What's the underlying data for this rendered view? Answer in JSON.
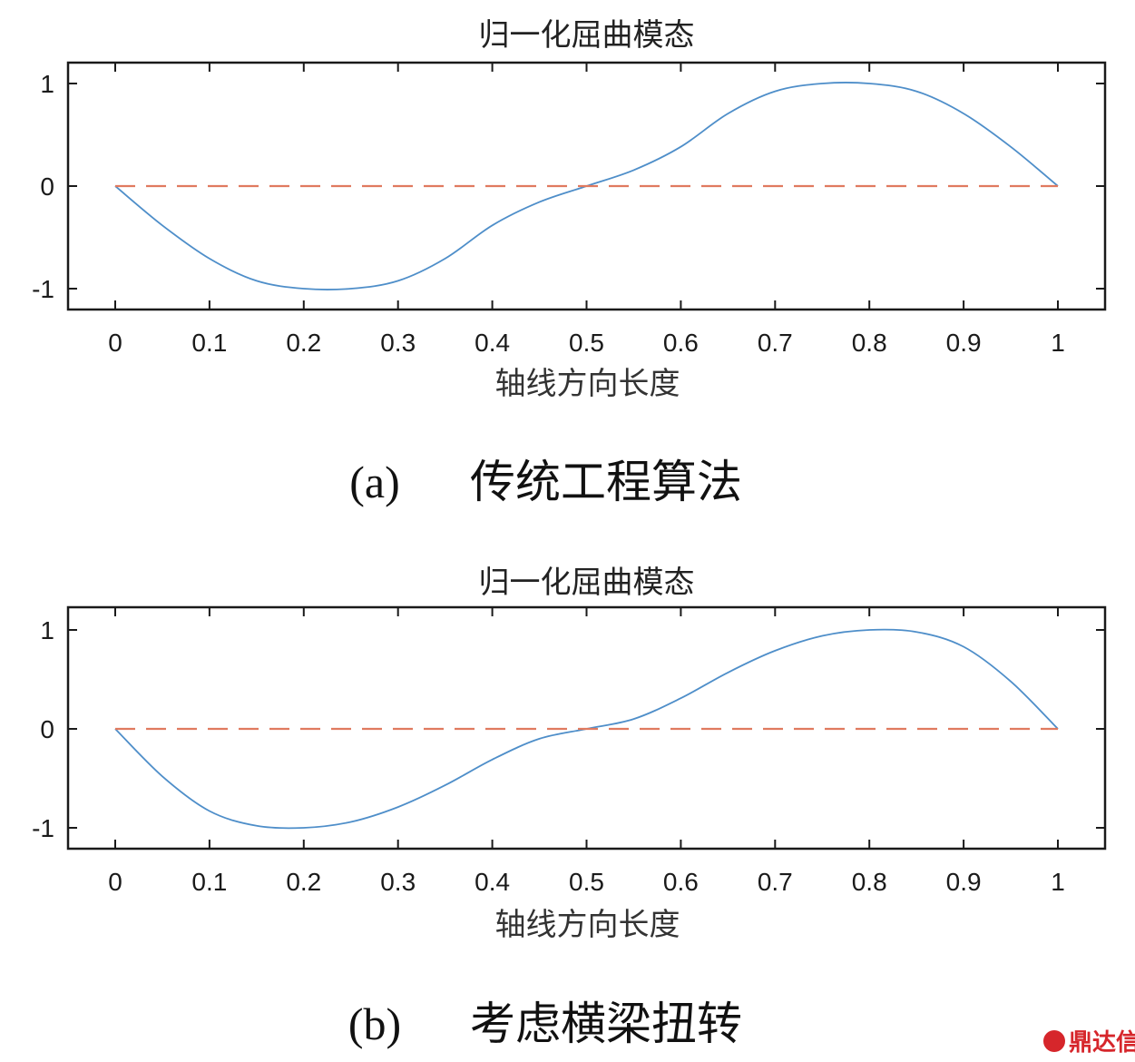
{
  "chart_data": [
    {
      "type": "line",
      "title": "归一化屈曲模态",
      "xlabel": "轴线方向长度",
      "ylabel": "",
      "xlim": [
        0,
        1
      ],
      "ylim": [
        -1.2,
        1.2
      ],
      "x_ticks": [
        "0",
        "0.1",
        "0.2",
        "0.3",
        "0.4",
        "0.5",
        "0.6",
        "0.7",
        "0.8",
        "0.9",
        "1"
      ],
      "y_ticks": [
        "1",
        "0",
        "-1"
      ],
      "series": [
        {
          "name": "mode",
          "color": "#4e8ec9",
          "style": "solid",
          "x": [
            0,
            0.05,
            0.1,
            0.15,
            0.2,
            0.25,
            0.3,
            0.35,
            0.4,
            0.45,
            0.5,
            0.55,
            0.6,
            0.65,
            0.7,
            0.75,
            0.8,
            0.85,
            0.9,
            0.95,
            1
          ],
          "y": [
            0,
            -0.383,
            -0.707,
            -0.924,
            -1,
            -1,
            -0.924,
            -0.707,
            -0.383,
            -0.156,
            0,
            0.156,
            0.383,
            0.707,
            0.924,
            1,
            1,
            0.924,
            0.707,
            0.383,
            0
          ]
        },
        {
          "name": "baseline",
          "color": "#e07a5f",
          "style": "dashed",
          "x": [
            0,
            1
          ],
          "y": [
            0,
            0
          ]
        }
      ],
      "caption_label": "(a)",
      "caption": "传统工程算法"
    },
    {
      "type": "line",
      "title": "归一化屈曲模态",
      "xlabel": "轴线方向长度",
      "ylabel": "",
      "xlim": [
        0,
        1
      ],
      "ylim": [
        -1.2,
        1.2
      ],
      "x_ticks": [
        "0",
        "0.1",
        "0.2",
        "0.3",
        "0.4",
        "0.5",
        "0.6",
        "0.7",
        "0.8",
        "0.9",
        "1"
      ],
      "y_ticks": [
        "1",
        "0",
        "-1"
      ],
      "series": [
        {
          "name": "mode",
          "color": "#4e8ec9",
          "style": "solid",
          "x": [
            0,
            0.05,
            0.1,
            0.15,
            0.2,
            0.25,
            0.3,
            0.35,
            0.4,
            0.45,
            0.5,
            0.55,
            0.6,
            0.65,
            0.7,
            0.75,
            0.8,
            0.85,
            0.9,
            0.95,
            1
          ],
          "y": [
            0,
            -0.48,
            -0.83,
            -0.98,
            -1,
            -0.94,
            -0.79,
            -0.57,
            -0.31,
            -0.1,
            0,
            0.1,
            0.31,
            0.57,
            0.79,
            0.94,
            1,
            0.98,
            0.83,
            0.48,
            0
          ]
        },
        {
          "name": "baseline",
          "color": "#e07a5f",
          "style": "dashed",
          "x": [
            0,
            1
          ],
          "y": [
            0,
            0
          ]
        }
      ],
      "caption_label": "(b)",
      "caption": "考虑横梁扭转"
    }
  ],
  "watermark": {
    "text": "鼎达信",
    "color": "#d6262b"
  }
}
